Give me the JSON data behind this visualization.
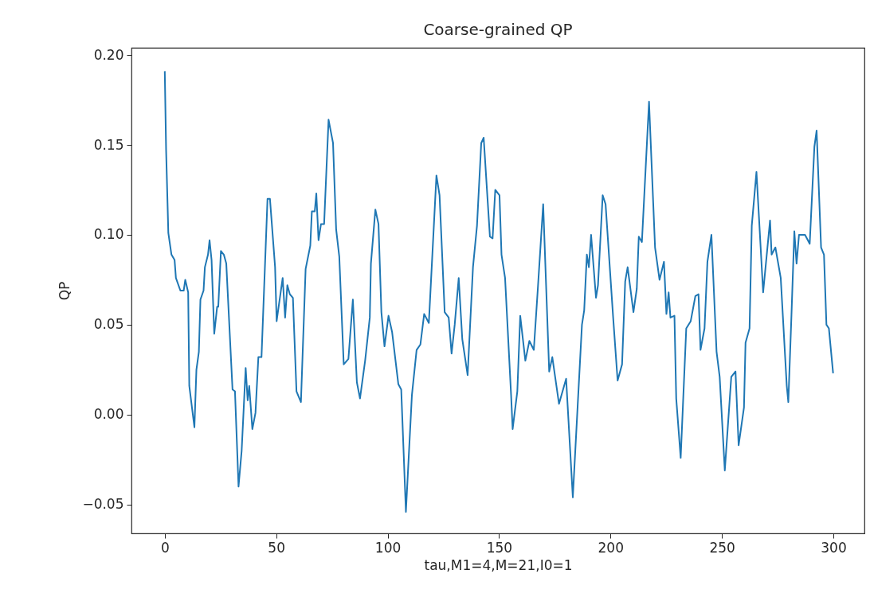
{
  "chart_data": {
    "type": "line",
    "title": "Coarse-grained QP",
    "xlabel": "tau,M1=4,M=21,I0=1",
    "ylabel": "QP",
    "color": "#1f77b4",
    "grid": false,
    "x": [
      0,
      0.6,
      1.6,
      3,
      4.4,
      5,
      7,
      8.5,
      9.2,
      10.5,
      11,
      13.3,
      14.2,
      15.3,
      16,
      17.4,
      18,
      19.4,
      20.1,
      21,
      22.2,
      23.5,
      24,
      25.2,
      26.5,
      27.6,
      30.4,
      31.5,
      33.1,
      34.5,
      36.3,
      37.2,
      37.9,
      39.3,
      40.7,
      42,
      43.4,
      46.1,
      47.2,
      49.5,
      50.2,
      52.9,
      54,
      55,
      56.1,
      57.5,
      59.1,
      61.1,
      63.2,
      65.3,
      66,
      67.3,
      68,
      69,
      70.1,
      71.5,
      73.5,
      75.5,
      76.9,
      78.3,
      80.3,
      82.4,
      84.4,
      86.2,
      87.6,
      89.9,
      92,
      92.5,
      94.5,
      95.9,
      97.2,
      98.6,
      100.4,
      102,
      104.8,
      106.1,
      108.2,
      110.9,
      113,
      114.7,
      116.4,
      118.5,
      121.9,
      123.3,
      125.6,
      127.4,
      128.7,
      130.1,
      131.9,
      133.5,
      135.9,
      138.3,
      140.1,
      142,
      143.1,
      145.9,
      147.1,
      148.3,
      150.2,
      151.1,
      152.7,
      155.4,
      156.1,
      158.2,
      159.5,
      161.8,
      163.6,
      165.6,
      167.5,
      169.8,
      172.5,
      173.9,
      176.9,
      180.1,
      183.1,
      187.2,
      188.2,
      189.4,
      190.3,
      191.3,
      193.5,
      194.4,
      196.5,
      197.8,
      201.2,
      203.2,
      205.2,
      206.6,
      207.7,
      210.3,
      211.8,
      212.7,
      214.1,
      217.3,
      220,
      222,
      224,
      225.1,
      226.1,
      226.9,
      228.7,
      229.5,
      231.5,
      234,
      236,
      238.1,
      239.5,
      240.4,
      242.2,
      243.5,
      245.3,
      247.6,
      249,
      251.3,
      254.2,
      256.1,
      257.5,
      259.9,
      260.6,
      262.4,
      263.4,
      265.5,
      268.5,
      271.6,
      272.3,
      274,
      276.4,
      279.1,
      279.8,
      281.2,
      282.5,
      283.5,
      284.6,
      287.3,
      289.4,
      291.5,
      292.5,
      294.5,
      295.8,
      296.9,
      298,
      299.9
    ],
    "values": [
      0.191,
      0.147,
      0.101,
      0.089,
      0.086,
      0.076,
      0.069,
      0.069,
      0.075,
      0.068,
      0.016,
      -0.007,
      0.025,
      0.035,
      0.064,
      0.069,
      0.082,
      0.089,
      0.097,
      0.086,
      0.045,
      0.06,
      0.06,
      0.091,
      0.089,
      0.084,
      0.014,
      0.013,
      -0.04,
      -0.02,
      0.026,
      0.008,
      0.016,
      -0.008,
      0.001,
      0.032,
      0.032,
      0.12,
      0.12,
      0.082,
      0.052,
      0.076,
      0.054,
      0.072,
      0.067,
      0.065,
      0.013,
      0.007,
      0.081,
      0.094,
      0.113,
      0.113,
      0.123,
      0.097,
      0.106,
      0.106,
      0.164,
      0.151,
      0.103,
      0.088,
      0.028,
      0.031,
      0.064,
      0.018,
      0.009,
      0.03,
      0.054,
      0.084,
      0.114,
      0.106,
      0.057,
      0.038,
      0.055,
      0.046,
      0.017,
      0.014,
      -0.054,
      0.011,
      0.036,
      0.039,
      0.056,
      0.051,
      0.133,
      0.122,
      0.057,
      0.054,
      0.034,
      0.05,
      0.076,
      0.042,
      0.022,
      0.082,
      0.105,
      0.151,
      0.154,
      0.099,
      0.098,
      0.125,
      0.122,
      0.089,
      0.076,
      0.011,
      -0.008,
      0.013,
      0.055,
      0.03,
      0.041,
      0.036,
      0.072,
      0.117,
      0.024,
      0.032,
      0.006,
      0.02,
      -0.046,
      0.05,
      0.058,
      0.089,
      0.082,
      0.1,
      0.065,
      0.072,
      0.122,
      0.117,
      0.054,
      0.019,
      0.028,
      0.074,
      0.082,
      0.057,
      0.07,
      0.099,
      0.096,
      0.174,
      0.093,
      0.075,
      0.085,
      0.056,
      0.068,
      0.054,
      0.055,
      0.009,
      -0.024,
      0.048,
      0.052,
      0.066,
      0.067,
      0.036,
      0.048,
      0.085,
      0.1,
      0.035,
      0.021,
      -0.031,
      0.021,
      0.024,
      -0.017,
      0.004,
      0.04,
      0.048,
      0.105,
      0.135,
      0.068,
      0.108,
      0.089,
      0.093,
      0.076,
      0.016,
      0.007,
      0.055,
      0.102,
      0.084,
      0.1,
      0.1,
      0.095,
      0.149,
      0.158,
      0.093,
      0.089,
      0.05,
      0.048,
      0.023
    ],
    "xlim": [
      -14.95,
      313.95
    ],
    "xticks": [
      0,
      50,
      100,
      150,
      200,
      250,
      300
    ],
    "ylim": [
      -0.066,
      0.204
    ],
    "yticks": [
      {
        "value": -0.05,
        "label": "−0.05"
      },
      {
        "value": 0,
        "label": "0.00"
      },
      {
        "value": 0.05,
        "label": "0.05"
      },
      {
        "value": 0.1,
        "label": "0.10"
      },
      {
        "value": 0.15,
        "label": "0.15"
      },
      {
        "value": 0.2,
        "label": "0.20"
      }
    ]
  }
}
